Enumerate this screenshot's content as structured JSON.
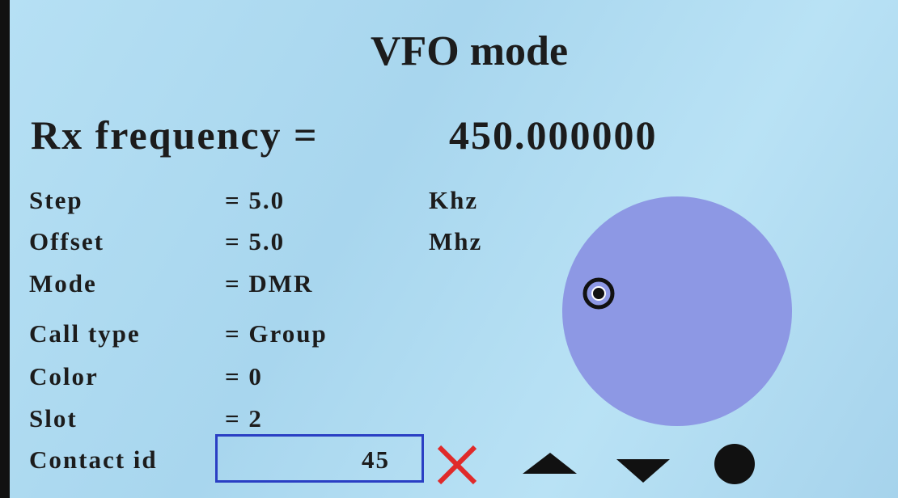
{
  "header": {
    "title": "VFO mode"
  },
  "frequency": {
    "label": "Rx frequency =",
    "value": "450.000000"
  },
  "rows": [
    {
      "label": "Step",
      "value": "= 5.0",
      "unit": "Khz"
    },
    {
      "label": "Offset",
      "value": "= 5.0",
      "unit": "Mhz"
    },
    {
      "label": "Mode",
      "value": "= DMR"
    },
    {
      "label": "Call type",
      "value": "= Group"
    },
    {
      "label": "Color",
      "value": "= 0"
    },
    {
      "label": "Slot",
      "value": "= 2"
    }
  ],
  "contact": {
    "label": "Contact id",
    "value": "45"
  }
}
